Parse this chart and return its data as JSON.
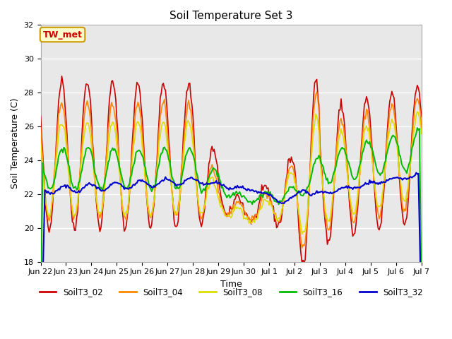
{
  "title": "Soil Temperature Set 3",
  "xlabel": "Time",
  "ylabel": "Soil Temperature (C)",
  "ylim": [
    18,
    32
  ],
  "xlim": [
    0,
    360
  ],
  "annotation_text": "TW_met",
  "annotation_bg": "#ffffcc",
  "annotation_border": "#cc9900",
  "line_colors": {
    "SoilT3_02": "#cc0000",
    "SoilT3_04": "#ff8800",
    "SoilT3_08": "#dddd00",
    "SoilT3_16": "#00bb00",
    "SoilT3_32": "#0000cc"
  },
  "legend_labels": [
    "SoilT3_02",
    "SoilT3_04",
    "SoilT3_08",
    "SoilT3_16",
    "SoilT3_32"
  ],
  "fig_bg": "#ffffff",
  "plot_bg": "#e8e8e8",
  "grid_color": "#ffffff",
  "tick_labels": [
    "Jun 22",
    "Jun 23",
    "Jun 24",
    "Jun 25",
    "Jun 26",
    "Jun 27",
    "Jun 28",
    "Jun 29",
    "Jun 30",
    "Jul 1",
    "Jul 2",
    "Jul 3",
    "Jul 4",
    "Jul 5",
    "Jul 6",
    "Jul 7"
  ],
  "tick_positions": [
    0,
    24,
    48,
    72,
    96,
    120,
    144,
    168,
    192,
    216,
    240,
    264,
    288,
    312,
    336,
    360
  ]
}
